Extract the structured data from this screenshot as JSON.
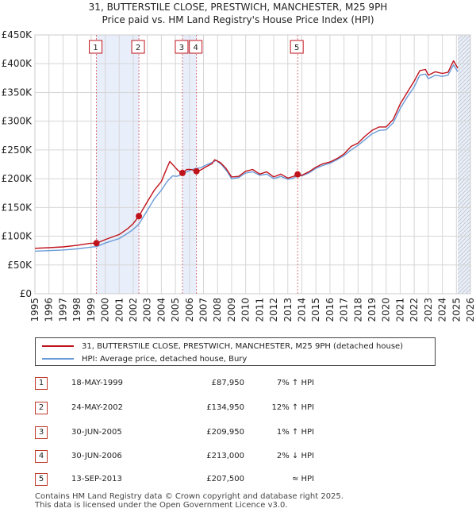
{
  "header": {
    "title": "31, BUTTERSTILE CLOSE, PRESTWICH, MANCHESTER, M25 9PH",
    "subtitle": "Price paid vs. HM Land Registry's House Price Index (HPI)"
  },
  "chart_data": {
    "type": "line",
    "title": "31, BUTTERSTILE CLOSE, PRESTWICH, MANCHESTER, M25 9PH",
    "subtitle": "Price paid vs. HM Land Registry's House Price Index (HPI)",
    "xlabel": "",
    "ylabel": "",
    "xlim": [
      1995,
      2026
    ],
    "ylim": [
      0,
      450000
    ],
    "grid": true,
    "y_ticks": [
      {
        "value": 0,
        "label": "£0"
      },
      {
        "value": 50000,
        "label": "£50K"
      },
      {
        "value": 100000,
        "label": "£100K"
      },
      {
        "value": 150000,
        "label": "£150K"
      },
      {
        "value": 200000,
        "label": "£200K"
      },
      {
        "value": 250000,
        "label": "£250K"
      },
      {
        "value": 300000,
        "label": "£300K"
      },
      {
        "value": 350000,
        "label": "£350K"
      },
      {
        "value": 400000,
        "label": "£400K"
      },
      {
        "value": 450000,
        "label": "£450K"
      }
    ],
    "x_ticks": [
      "1995",
      "1996",
      "1997",
      "1998",
      "1999",
      "2000",
      "2001",
      "2002",
      "2003",
      "2004",
      "2005",
      "2006",
      "2007",
      "2008",
      "2009",
      "2010",
      "2011",
      "2012",
      "2013",
      "2014",
      "2015",
      "2016",
      "2017",
      "2018",
      "2019",
      "2020",
      "2021",
      "2022",
      "2023",
      "2024",
      "2025",
      "2026"
    ],
    "series": [
      {
        "name": "31, BUTTERSTILE CLOSE, PRESTWICH, MANCHESTER, M25 9PH (detached house)",
        "color": "#c0121b",
        "points": [
          [
            1995.0,
            79000
          ],
          [
            1996.0,
            80000
          ],
          [
            1997.0,
            81500
          ],
          [
            1998.0,
            84000
          ],
          [
            1998.9,
            87500
          ],
          [
            1999.38,
            87950
          ],
          [
            2000.0,
            94000
          ],
          [
            2001.0,
            103000
          ],
          [
            2001.6,
            113000
          ],
          [
            2002.0,
            122000
          ],
          [
            2002.4,
            134950
          ],
          [
            2003.0,
            160000
          ],
          [
            2003.5,
            180000
          ],
          [
            2004.0,
            195000
          ],
          [
            2004.3,
            213000
          ],
          [
            2004.6,
            230000
          ],
          [
            2004.9,
            222000
          ],
          [
            2005.2,
            214000
          ],
          [
            2005.5,
            209950
          ],
          [
            2005.8,
            216000
          ],
          [
            2006.1,
            216000
          ],
          [
            2006.5,
            213000
          ],
          [
            2006.8,
            215000
          ],
          [
            2007.2,
            221000
          ],
          [
            2007.6,
            226000
          ],
          [
            2007.8,
            233000
          ],
          [
            2008.2,
            228000
          ],
          [
            2008.6,
            218000
          ],
          [
            2009.0,
            203000
          ],
          [
            2009.5,
            204000
          ],
          [
            2010.0,
            213000
          ],
          [
            2010.5,
            216000
          ],
          [
            2011.0,
            208000
          ],
          [
            2011.5,
            212000
          ],
          [
            2012.0,
            203000
          ],
          [
            2012.5,
            208000
          ],
          [
            2013.0,
            201000
          ],
          [
            2013.4,
            204000
          ],
          [
            2013.7,
            207500
          ],
          [
            2014.0,
            206000
          ],
          [
            2014.5,
            212000
          ],
          [
            2015.0,
            220000
          ],
          [
            2015.5,
            226000
          ],
          [
            2016.0,
            229000
          ],
          [
            2016.5,
            235000
          ],
          [
            2017.0,
            243000
          ],
          [
            2017.5,
            256000
          ],
          [
            2018.0,
            262000
          ],
          [
            2018.5,
            274000
          ],
          [
            2019.0,
            284000
          ],
          [
            2019.5,
            290000
          ],
          [
            2020.0,
            290000
          ],
          [
            2020.5,
            303000
          ],
          [
            2021.0,
            330000
          ],
          [
            2021.5,
            350000
          ],
          [
            2022.0,
            370000
          ],
          [
            2022.4,
            388000
          ],
          [
            2022.8,
            390000
          ],
          [
            2023.0,
            380000
          ],
          [
            2023.5,
            386000
          ],
          [
            2024.0,
            383000
          ],
          [
            2024.4,
            385000
          ],
          [
            2024.8,
            405000
          ],
          [
            2025.1,
            392000
          ]
        ]
      },
      {
        "name": "HPI: Average price, detached house, Bury",
        "color": "#6a9bd8",
        "points": [
          [
            1995.0,
            74000
          ],
          [
            1996.0,
            75000
          ],
          [
            1997.0,
            76000
          ],
          [
            1998.0,
            78000
          ],
          [
            1999.0,
            81000
          ],
          [
            1999.4,
            82000
          ],
          [
            2000.0,
            88000
          ],
          [
            2001.0,
            96000
          ],
          [
            2001.6,
            105000
          ],
          [
            2002.0,
            112000
          ],
          [
            2002.4,
            121000
          ],
          [
            2003.0,
            145000
          ],
          [
            2003.5,
            165000
          ],
          [
            2004.0,
            180000
          ],
          [
            2004.4,
            195000
          ],
          [
            2004.8,
            205000
          ],
          [
            2005.1,
            204000
          ],
          [
            2005.5,
            208000
          ],
          [
            2005.8,
            212000
          ],
          [
            2006.2,
            216000
          ],
          [
            2006.5,
            218000
          ],
          [
            2006.8,
            219000
          ],
          [
            2007.2,
            224000
          ],
          [
            2007.6,
            228000
          ],
          [
            2007.9,
            232000
          ],
          [
            2008.3,
            224000
          ],
          [
            2008.7,
            212000
          ],
          [
            2009.0,
            200000
          ],
          [
            2009.5,
            202000
          ],
          [
            2010.0,
            210000
          ],
          [
            2010.5,
            212000
          ],
          [
            2011.0,
            206000
          ],
          [
            2011.5,
            208000
          ],
          [
            2012.0,
            200000
          ],
          [
            2012.5,
            204000
          ],
          [
            2013.0,
            199000
          ],
          [
            2013.4,
            201000
          ],
          [
            2013.7,
            206000
          ],
          [
            2014.0,
            205000
          ],
          [
            2014.5,
            210000
          ],
          [
            2015.0,
            218000
          ],
          [
            2015.5,
            223000
          ],
          [
            2016.0,
            227000
          ],
          [
            2016.5,
            233000
          ],
          [
            2017.0,
            240000
          ],
          [
            2017.5,
            250000
          ],
          [
            2018.0,
            258000
          ],
          [
            2018.5,
            268000
          ],
          [
            2019.0,
            278000
          ],
          [
            2019.5,
            284000
          ],
          [
            2020.0,
            285000
          ],
          [
            2020.5,
            297000
          ],
          [
            2021.0,
            322000
          ],
          [
            2021.5,
            342000
          ],
          [
            2022.0,
            360000
          ],
          [
            2022.4,
            380000
          ],
          [
            2022.8,
            382000
          ],
          [
            2023.0,
            374000
          ],
          [
            2023.5,
            380000
          ],
          [
            2024.0,
            378000
          ],
          [
            2024.4,
            380000
          ],
          [
            2024.8,
            398000
          ],
          [
            2025.1,
            386000
          ]
        ]
      }
    ],
    "sales": [
      {
        "label": "1",
        "x": 1999.38,
        "price": 87950
      },
      {
        "label": "2",
        "x": 2002.4,
        "price": 134950
      },
      {
        "label": "3",
        "x": 2005.5,
        "price": 209950
      },
      {
        "label": "4",
        "x": 2006.5,
        "price": 213000
      },
      {
        "label": "5",
        "x": 2013.7,
        "price": 207500
      }
    ],
    "shaded_ranges": [
      [
        1999.38,
        2002.4
      ],
      [
        2005.5,
        2006.5
      ],
      [
        2013.7,
        2013.7
      ],
      [
        2025.1,
        2026
      ]
    ]
  },
  "legend": {
    "items": [
      {
        "label": "31, BUTTERSTILE CLOSE, PRESTWICH, MANCHESTER, M25 9PH (detached house)",
        "color": "#c0121b"
      },
      {
        "label": "HPI: Average price, detached house, Bury",
        "color": "#6a9bd8"
      }
    ]
  },
  "transactions": [
    {
      "num": "1",
      "date": "18-MAY-1999",
      "price": "£87,950",
      "hpi": "7% ↑ HPI"
    },
    {
      "num": "2",
      "date": "24-MAY-2002",
      "price": "£134,950",
      "hpi": "12% ↑ HPI"
    },
    {
      "num": "3",
      "date": "30-JUN-2005",
      "price": "£209,950",
      "hpi": "1% ↑ HPI"
    },
    {
      "num": "4",
      "date": "30-JUN-2006",
      "price": "£213,000",
      "hpi": "2% ↓ HPI"
    },
    {
      "num": "5",
      "date": "13-SEP-2013",
      "price": "£207,500",
      "hpi": "≈ HPI"
    }
  ],
  "footer": {
    "line1": "Contains HM Land Registry data © Crown copyright and database right 2025.",
    "line2": "This data is licensed under the Open Government Licence v3.0."
  },
  "colors": {
    "price_line": "#c0121b",
    "hpi_line": "#6a9bd8",
    "shade": "#e8eefa",
    "marker": "#c0121b",
    "grid": "#d6d6d6"
  }
}
